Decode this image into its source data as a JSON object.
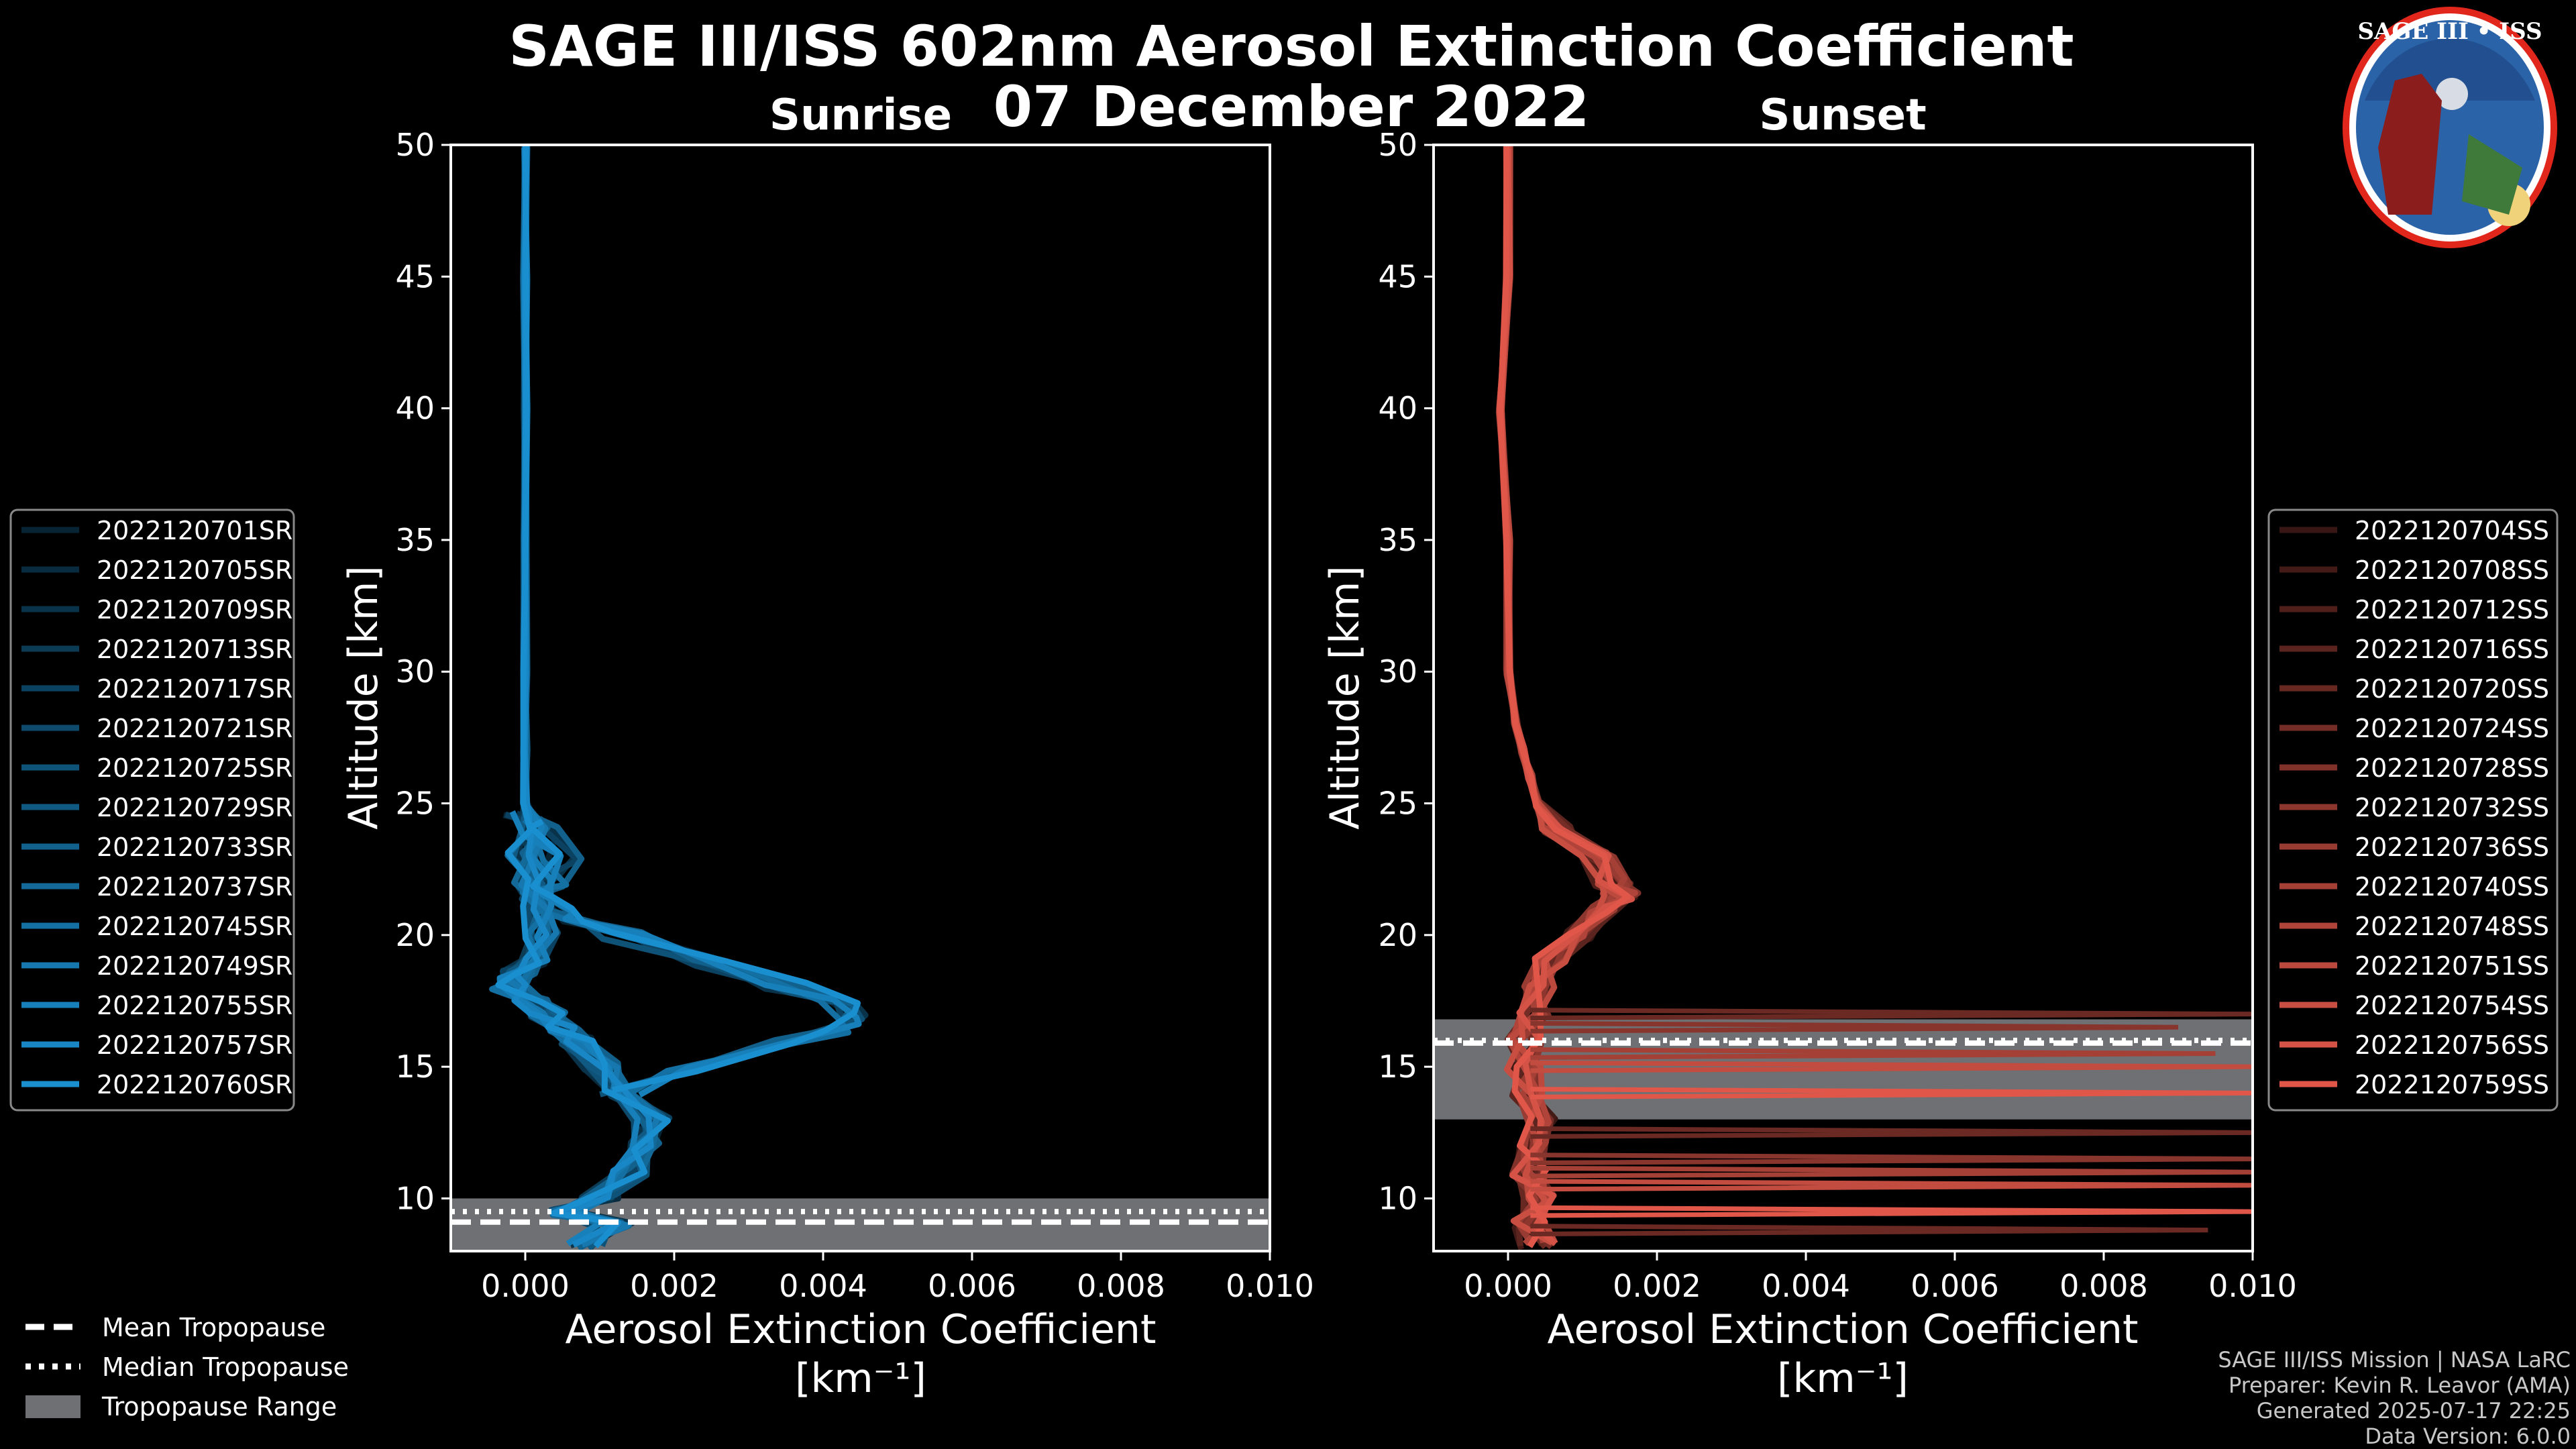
{
  "title": "SAGE III/ISS 602nm Aerosol Extinction Coefficient",
  "date": "07 December 2022",
  "logo_text": "SAGE III • ISS",
  "xlabel_line1": "Aerosol Extinction Coefficient",
  "xlabel_line2": "[km⁻¹]",
  "ylabel": "Altitude [km]",
  "x_tick_labels": [
    "0.000",
    "0.002",
    "0.004",
    "0.006",
    "0.008",
    "0.010"
  ],
  "y_tick_labels": [
    "10",
    "15",
    "20",
    "25",
    "30",
    "35",
    "40",
    "45",
    "50"
  ],
  "bottom_legend": {
    "mean": "Mean Tropopause",
    "median": "Median Tropopause",
    "range": "Tropopause Range"
  },
  "credits": [
    "SAGE III/ISS Mission | NASA LaRC",
    "Preparer: Kevin R. Leavor (AMA)",
    "Generated 2025-07-17 22:25",
    "Data Version: 6.0.0"
  ],
  "colors": {
    "sunrise": "#1a8fd0",
    "sunset": "#e0574a",
    "tropo_band": "#6e7073"
  },
  "chart_data": [
    {
      "type": "line",
      "title": "Sunrise",
      "xlabel": "Aerosol Extinction Coefficient [km⁻¹]",
      "ylabel": "Altitude [km]",
      "xlim": [
        -0.001,
        0.01
      ],
      "ylim": [
        8,
        50
      ],
      "tropopause": {
        "mean": 9.1,
        "median": 9.5,
        "range": [
          8.0,
          10.0
        ]
      },
      "legend": [
        "2022120701SR",
        "2022120705SR",
        "2022120709SR",
        "2022120713SR",
        "2022120717SR",
        "2022120721SR",
        "2022120725SR",
        "2022120729SR",
        "2022120733SR",
        "2022120737SR",
        "2022120745SR",
        "2022120749SR",
        "2022120755SR",
        "2022120757SR",
        "2022120760SR"
      ],
      "base_profile": {
        "y": [
          8.2,
          9,
          9.5,
          10,
          11,
          12,
          13,
          14,
          15,
          16,
          16.5,
          17,
          17.5,
          18,
          18.5,
          19,
          20,
          21,
          22,
          23,
          24,
          25,
          27,
          30,
          35,
          40,
          45,
          50
        ],
        "x": [
          0.0008,
          0.0012,
          0.0005,
          0.001,
          0.0014,
          0.0016,
          0.0017,
          0.0013,
          0.001,
          0.0007,
          0.0005,
          0.0003,
          0.0001,
          -0.0002,
          -0.0001,
          0.0001,
          0.0002,
          0.0001,
          0.0001,
          0.0,
          0.0001,
          0.0,
          0.0,
          0.0,
          0.0,
          0.0,
          0.0,
          0.0
        ]
      },
      "secondary_profile": {
        "y": [
          14,
          15,
          16,
          16.5,
          17,
          17.5,
          18,
          19,
          20,
          20.5,
          21,
          21.5,
          22,
          23,
          24,
          24.5
        ],
        "x": [
          0.0013,
          0.0022,
          0.0036,
          0.0042,
          0.0045,
          0.0042,
          0.0035,
          0.0025,
          0.0013,
          0.0008,
          0.0004,
          0.0002,
          0.0003,
          0.0005,
          0.0002,
          0.0
        ]
      }
    },
    {
      "type": "line",
      "title": "Sunset",
      "xlabel": "Aerosol Extinction Coefficient [km⁻¹]",
      "ylabel": "Altitude [km]",
      "xlim": [
        -0.001,
        0.01
      ],
      "ylim": [
        8,
        50
      ],
      "tropopause": {
        "mean": 15.9,
        "median": 16.0,
        "range": [
          13.0,
          16.8
        ]
      },
      "legend": [
        "2022120704SS",
        "2022120708SS",
        "2022120712SS",
        "2022120716SS",
        "2022120720SS",
        "2022120724SS",
        "2022120728SS",
        "2022120732SS",
        "2022120736SS",
        "2022120740SS",
        "2022120748SS",
        "2022120751SS",
        "2022120754SS",
        "2022120756SS",
        "2022120759SS"
      ],
      "base_profile": {
        "y": [
          8.2,
          9,
          10,
          11,
          12,
          13,
          14,
          15,
          16,
          17,
          18,
          19,
          20,
          21,
          21.5,
          22,
          23,
          24,
          25,
          26,
          27,
          28,
          30,
          35,
          40,
          45,
          50
        ],
        "x": [
          0.0004,
          0.0003,
          0.0004,
          0.0003,
          0.0004,
          0.0004,
          0.0003,
          0.0002,
          0.0002,
          0.0003,
          0.0004,
          0.0006,
          0.0009,
          0.0013,
          0.0015,
          0.0014,
          0.0012,
          0.0007,
          0.0004,
          0.0003,
          0.0002,
          0.0001,
          0.0,
          0.0,
          -0.0001,
          0.0,
          0.0
        ]
      },
      "spikes": [
        {
          "y": 17.0,
          "x": 0.01
        },
        {
          "y": 16.5,
          "x": 0.009
        },
        {
          "y": 15.5,
          "x": 0.0095
        },
        {
          "y": 15.0,
          "x": 0.01
        },
        {
          "y": 14.0,
          "x": 0.01
        },
        {
          "y": 12.5,
          "x": 0.01
        },
        {
          "y": 11.5,
          "x": 0.01
        },
        {
          "y": 11.0,
          "x": 0.01
        },
        {
          "y": 10.5,
          "x": 0.01
        },
        {
          "y": 9.5,
          "x": 0.01
        },
        {
          "y": 8.8,
          "x": 0.0094
        }
      ]
    }
  ]
}
